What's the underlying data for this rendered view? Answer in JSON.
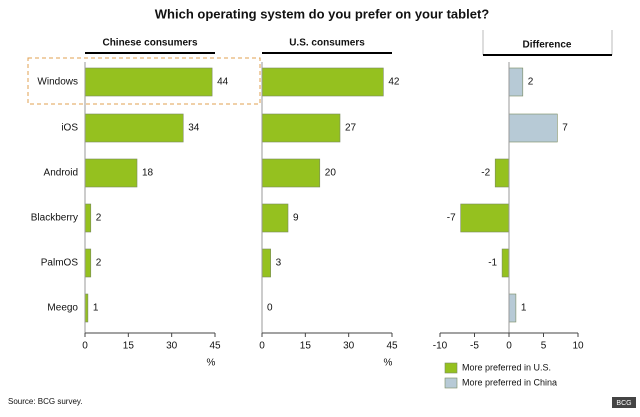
{
  "title": "Which operating system do you prefer on your tablet?",
  "source": "Source: BCG survey.",
  "logo": "BCG",
  "chart_data": [
    {
      "type": "bar",
      "orientation": "horizontal",
      "title": "Chinese consumers",
      "x_label": "%",
      "categories": [
        "Windows",
        "iOS",
        "Android",
        "Blackberry",
        "PalmOS",
        "Meego"
      ],
      "values": [
        44,
        34,
        18,
        2,
        2,
        1
      ],
      "color": "#95c11f",
      "xlim": [
        0,
        45
      ],
      "xticks": [
        0,
        15,
        30,
        45
      ]
    },
    {
      "type": "bar",
      "orientation": "horizontal",
      "title": "U.S. consumers",
      "x_label": "%",
      "values": [
        42,
        27,
        20,
        9,
        3,
        0
      ],
      "color": "#95c11f",
      "xlim": [
        0,
        45
      ],
      "xticks": [
        0,
        15,
        30,
        45
      ]
    },
    {
      "type": "bar",
      "orientation": "horizontal",
      "title": "Difference",
      "values": [
        2,
        7,
        -2,
        -7,
        -1,
        1
      ],
      "xlim": [
        -10,
        10
      ],
      "xticks": [
        -10,
        -5,
        0,
        5,
        10
      ],
      "legend": [
        {
          "name": "More preferred in U.S.",
          "color": "#95c11f",
          "sign": "negative"
        },
        {
          "name": "More preferred in China",
          "color": "#b7cad6",
          "sign": "positive"
        }
      ]
    }
  ]
}
